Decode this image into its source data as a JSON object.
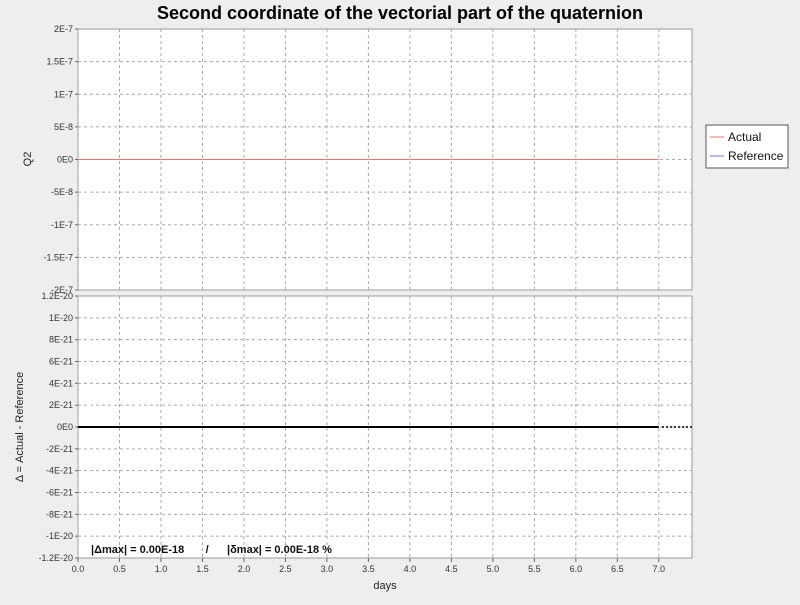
{
  "chart_data": [
    {
      "type": "line",
      "title": "Second coordinate of the vectorial part of the quaternion",
      "xlabel": "",
      "ylabel": "Q2",
      "xlim": [
        0,
        7.4
      ],
      "ylim": [
        -2e-07,
        2e-07
      ],
      "x_ticks": [
        "0.0",
        "0.5",
        "1.0",
        "1.5",
        "2.0",
        "2.5",
        "3.0",
        "3.5",
        "4.0",
        "4.5",
        "5.0",
        "5.5",
        "6.0",
        "6.5",
        "7.0"
      ],
      "y_ticks": [
        "2E-7",
        "1.5E-7",
        "1E-7",
        "5E-8",
        "0E0",
        "-5E-8",
        "-1E-7",
        "-1.5E-7",
        "-2E-7"
      ],
      "grid": true,
      "legend_position": "right",
      "series": [
        {
          "name": "Actual",
          "color": "#e8776f",
          "x": [
            0,
            7.0
          ],
          "y": [
            0,
            0
          ]
        },
        {
          "name": "Reference",
          "color": "#6f6fcf",
          "x": [
            0,
            7.0
          ],
          "y": [
            0,
            0
          ]
        }
      ]
    },
    {
      "type": "line",
      "xlabel": "days",
      "ylabel": "Δ = Actual - Reference",
      "xlim": [
        0,
        7.4
      ],
      "ylim": [
        -1.2e-20,
        1.2e-20
      ],
      "x_ticks": [
        "0.0",
        "0.5",
        "1.0",
        "1.5",
        "2.0",
        "2.5",
        "3.0",
        "3.5",
        "4.0",
        "4.5",
        "5.0",
        "5.5",
        "6.0",
        "6.5",
        "7.0"
      ],
      "y_ticks": [
        "1.2E-20",
        "1E-20",
        "8E-21",
        "6E-21",
        "4E-21",
        "2E-21",
        "0E0",
        "-2E-21",
        "-4E-21",
        "-6E-21",
        "-8E-21",
        "-1E-20",
        "-1.2E-20"
      ],
      "grid": true,
      "series": [
        {
          "name": "",
          "color": "#000000",
          "x": [
            0,
            7.0
          ],
          "y": [
            0,
            0
          ]
        }
      ],
      "annotation": "|Δmax| = 0.00E-18       /      |δmax| = 0.00E-18 %"
    }
  ]
}
